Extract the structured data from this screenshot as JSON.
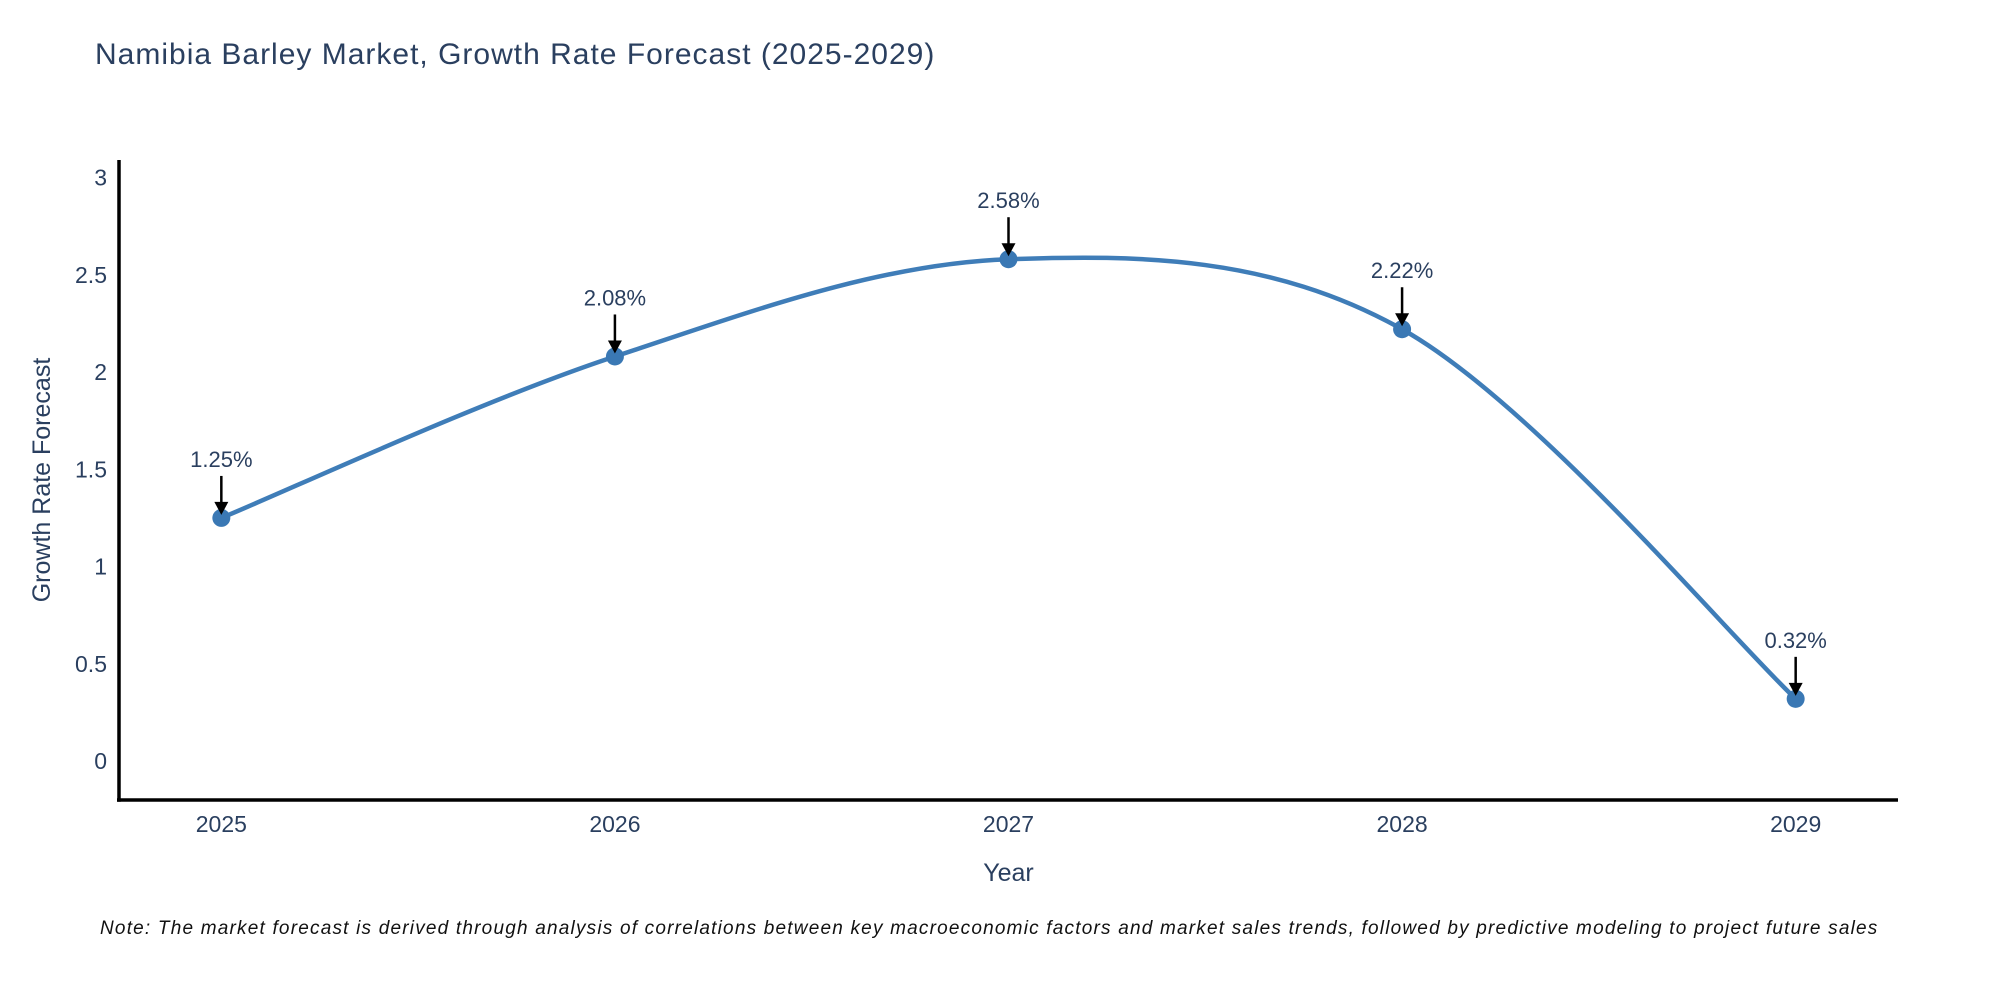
{
  "title": "Namibia Barley Market, Growth Rate Forecast (2025-2029)",
  "note": "Note: The market forecast is derived through analysis of correlations between key macroeconomic factors and market sales trends, followed by predictive modeling to project future sales",
  "chart_data": {
    "type": "line",
    "title": "Namibia Barley Market, Growth Rate Forecast (2025-2029)",
    "x": [
      2025,
      2026,
      2027,
      2028,
      2029
    ],
    "values": [
      1.25,
      2.08,
      2.58,
      2.22,
      0.32
    ],
    "annotations": [
      "1.25%",
      "2.08%",
      "2.58%",
      "2.22%",
      "0.32%"
    ],
    "xlabel": "Year",
    "ylabel": "Growth Rate Forecast",
    "x_ticks": [
      2025,
      2026,
      2027,
      2028,
      2029
    ],
    "y_ticks": [
      0,
      0.5,
      1,
      1.5,
      2,
      2.5,
      3
    ],
    "xlim": [
      2024.74,
      2029.26
    ],
    "ylim": [
      -0.2,
      3.09
    ],
    "line_shape": "spline",
    "grid": false,
    "legend_position": "none",
    "colors": {
      "line": "#3f7db8",
      "marker": "#3a78b4",
      "arrow": "#000000",
      "axis": "#000000",
      "text": "#2a3f5f",
      "note_text": "#111111",
      "background": "#ffffff"
    }
  }
}
